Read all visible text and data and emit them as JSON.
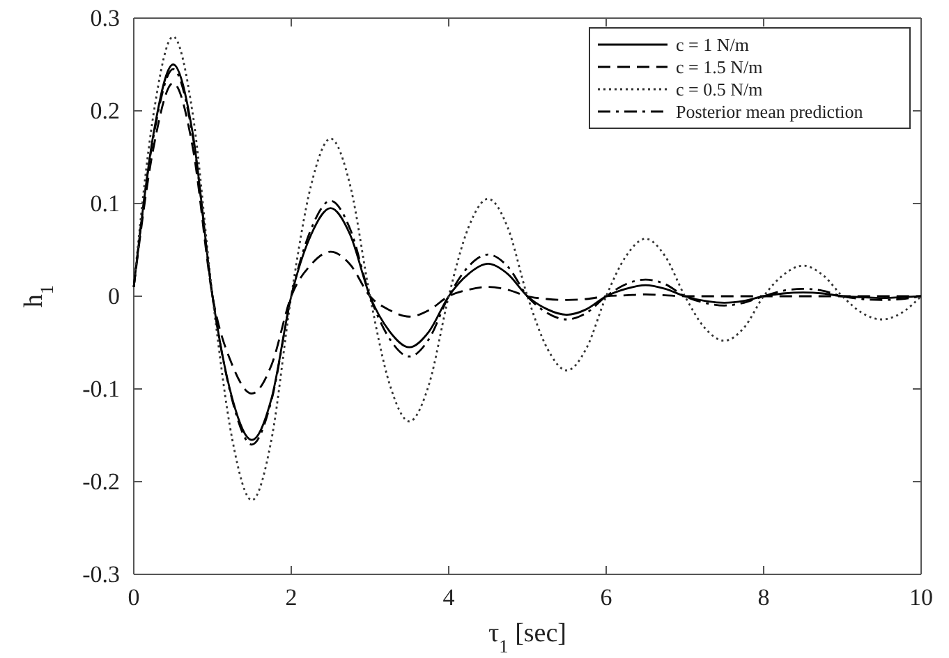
{
  "chart_data": {
    "type": "line",
    "xlabel": "τ$_{1}$ [sec]",
    "ylabel": "h$_{1}$",
    "x": [
      0,
      0.25,
      0.5,
      0.75,
      1,
      1.25,
      1.5,
      1.75,
      2,
      2.25,
      2.5,
      2.75,
      3,
      3.25,
      3.5,
      3.75,
      4,
      4.25,
      4.5,
      4.75,
      5,
      5.25,
      5.5,
      5.75,
      6,
      6.25,
      6.5,
      6.75,
      7,
      7.25,
      7.5,
      7.75,
      8,
      8.25,
      8.5,
      8.75,
      9,
      9.25,
      9.5,
      9.75,
      10
    ],
    "series": [
      {
        "name": "c = 1 N/m",
        "color": "#000000",
        "line_style": "solid",
        "values": [
          0.01,
          0.175,
          0.25,
          0.175,
          0,
          -0.11,
          -0.155,
          -0.11,
          0,
          0.066,
          0.095,
          0.066,
          0,
          -0.038,
          -0.055,
          -0.038,
          0,
          0.024,
          0.035,
          0.024,
          0,
          -0.014,
          -0.02,
          -0.014,
          0,
          0.008,
          0.012,
          0.008,
          0,
          -0.005,
          -0.007,
          -0.005,
          0,
          0.003,
          0.004,
          0.003,
          0,
          -0.001,
          -0.002,
          -0.001,
          0
        ]
      },
      {
        "name": "c = 1.5 N/m",
        "color": "#000000",
        "line_style": "dashed",
        "values": [
          0.01,
          0.16,
          0.23,
          0.16,
          0,
          -0.074,
          -0.105,
          -0.074,
          0,
          0.034,
          0.048,
          0.034,
          0,
          -0.015,
          -0.022,
          -0.015,
          0,
          0.007,
          0.01,
          0.007,
          0,
          -0.003,
          -0.004,
          -0.003,
          0,
          0.001,
          0.002,
          0.001,
          0,
          0,
          0,
          0,
          0,
          0,
          0,
          0,
          0,
          0,
          0,
          0,
          0
        ]
      },
      {
        "name": "c = 0.5 N/m",
        "color": "#333333",
        "line_style": "dotted",
        "values": [
          0.01,
          0.196,
          0.28,
          0.196,
          0,
          -0.154,
          -0.22,
          -0.154,
          0,
          0.119,
          0.17,
          0.119,
          0,
          -0.095,
          -0.135,
          -0.095,
          0,
          0.074,
          0.105,
          0.074,
          0,
          -0.056,
          -0.08,
          -0.056,
          0,
          0.043,
          0.062,
          0.043,
          0,
          -0.034,
          -0.048,
          -0.034,
          0,
          0.023,
          0.033,
          0.023,
          0,
          -0.018,
          -0.025,
          -0.018,
          0
        ]
      },
      {
        "name": "Posterior mean prediction",
        "color": "#000000",
        "line_style": "dashdot",
        "values": [
          0.01,
          0.172,
          0.245,
          0.172,
          0,
          -0.112,
          -0.16,
          -0.112,
          0,
          0.072,
          0.103,
          0.072,
          0,
          -0.046,
          -0.065,
          -0.046,
          0,
          0.032,
          0.045,
          0.032,
          0,
          -0.018,
          -0.025,
          -0.018,
          0,
          0.013,
          0.018,
          0.013,
          0,
          -0.007,
          -0.01,
          -0.007,
          0,
          0.006,
          0.008,
          0.006,
          0,
          -0.003,
          -0.004,
          -0.003,
          0
        ]
      }
    ],
    "xlim": [
      0,
      10
    ],
    "xticks": [
      0,
      2,
      4,
      6,
      8,
      10
    ],
    "ylim": [
      -0.3,
      0.3
    ],
    "yticks": [
      {
        "value": -0.3,
        "label": "-0.3"
      },
      {
        "value": -0.2,
        "label": "-0.2"
      },
      {
        "value": -0.1,
        "label": "-0.1"
      },
      0,
      {
        "value": 0.1,
        "label": "0.1"
      },
      {
        "value": 0.2,
        "label": "0.2"
      },
      {
        "value": 0.3,
        "label": "0.3"
      }
    ],
    "grid": false,
    "legend": "top right",
    "marker": "none"
  }
}
